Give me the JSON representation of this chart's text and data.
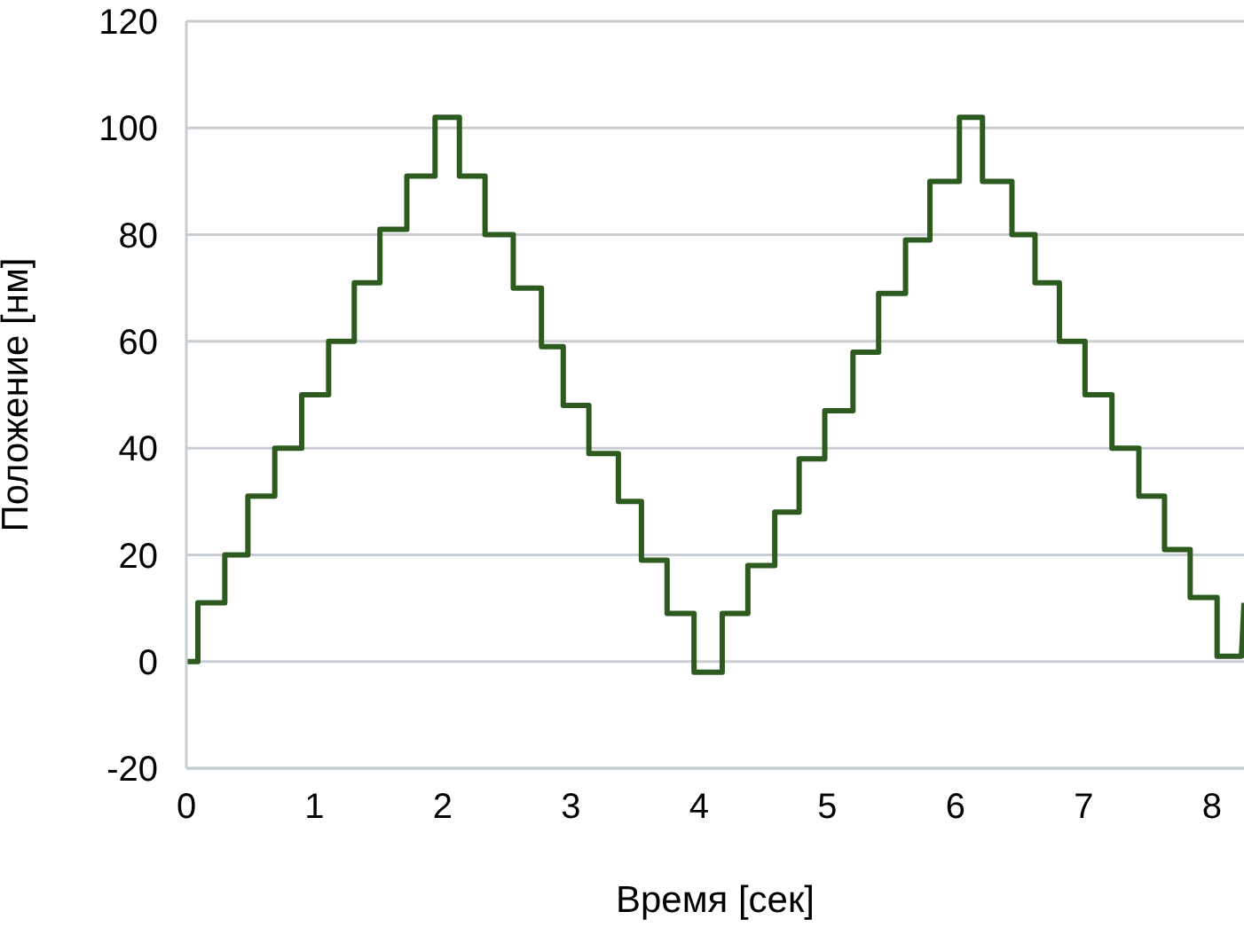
{
  "chart_data": {
    "type": "line",
    "xlabel": "Время [сек]",
    "ylabel": "Положение [нм]",
    "x": [
      0,
      0.09,
      0.09,
      0.3,
      0.3,
      0.48,
      0.48,
      0.69,
      0.69,
      0.9,
      0.9,
      1.11,
      1.11,
      1.31,
      1.31,
      1.51,
      1.51,
      1.72,
      1.72,
      1.94,
      1.94,
      2.13,
      2.13,
      2.33,
      2.33,
      2.55,
      2.55,
      2.77,
      2.77,
      2.94,
      2.94,
      3.14,
      3.14,
      3.37,
      3.37,
      3.55,
      3.55,
      3.75,
      3.75,
      3.96,
      3.96,
      4.18,
      4.18,
      4.38,
      4.38,
      4.59,
      4.59,
      4.78,
      4.78,
      4.98,
      4.98,
      5.2,
      5.2,
      5.4,
      5.4,
      5.61,
      5.61,
      5.8,
      5.8,
      6.03,
      6.03,
      6.21,
      6.21,
      6.44,
      6.44,
      6.62,
      6.62,
      6.81,
      6.81,
      7.01,
      7.01,
      7.22,
      7.22,
      7.43,
      7.43,
      7.63,
      7.63,
      7.83,
      7.83,
      8.04,
      8.04,
      8.23,
      8.25
    ],
    "series": [
      {
        "color": "#2d5a1e",
        "values": [
          0,
          0,
          11,
          11,
          20,
          20,
          31,
          31,
          40,
          40,
          50,
          50,
          60,
          60,
          71,
          71,
          81,
          81,
          91,
          91,
          102,
          102,
          91,
          91,
          80,
          80,
          70,
          70,
          59,
          59,
          48,
          48,
          39,
          39,
          30,
          30,
          19,
          19,
          9,
          9,
          -2,
          -2,
          9,
          9,
          18,
          18,
          28,
          28,
          38,
          38,
          47,
          47,
          58,
          58,
          69,
          69,
          79,
          79,
          90,
          90,
          102,
          102,
          90,
          90,
          80,
          80,
          71,
          71,
          60,
          60,
          50,
          50,
          40,
          40,
          31,
          31,
          21,
          21,
          12,
          12,
          1,
          1,
          11
        ]
      }
    ],
    "xlim": [
      0,
      8.25
    ],
    "xticks": [
      0,
      1,
      2,
      3,
      4,
      5,
      6,
      7,
      8
    ],
    "ylim": [
      -20,
      120
    ],
    "yticks": [
      -20,
      0,
      20,
      40,
      60,
      80,
      100,
      120
    ],
    "grid": "y",
    "marker": "none",
    "line_style": "solid"
  }
}
